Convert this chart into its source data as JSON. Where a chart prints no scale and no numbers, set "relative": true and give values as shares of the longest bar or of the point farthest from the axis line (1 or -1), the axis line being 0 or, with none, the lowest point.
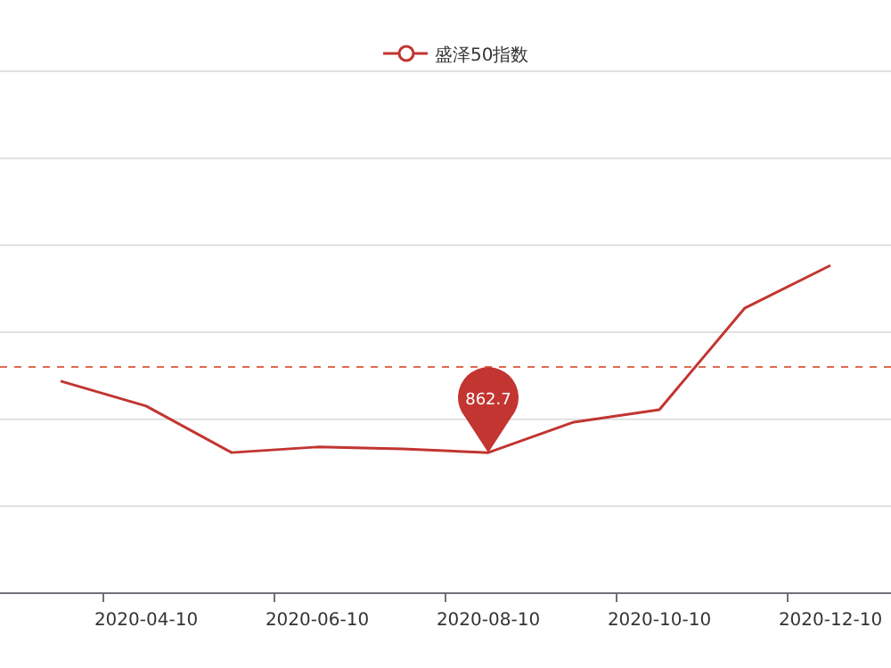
{
  "chart_data": {
    "type": "line",
    "relative": true,
    "categories": [
      null,
      "2020-04-10",
      null,
      "2020-06-10",
      null,
      "2020-08-10",
      null,
      "2020-10-10",
      null,
      "2020-12-10"
    ],
    "series": [
      {
        "name": "盛泽50指数",
        "color": "#c23531",
        "values": [
          0.647,
          0.571,
          0.429,
          0.446,
          0.44,
          0.429,
          0.522,
          0.56,
          0.87,
          1
        ]
      }
    ],
    "ref_lines": [
      {
        "axis": "y",
        "value": 0.69,
        "color": "#dd6b4d",
        "line_style": "dashed"
      }
    ],
    "annotations": [
      {
        "text": "862.7",
        "x": "2020-08-10",
        "y": 0.429
      }
    ],
    "grid": "y",
    "legend": "top"
  }
}
